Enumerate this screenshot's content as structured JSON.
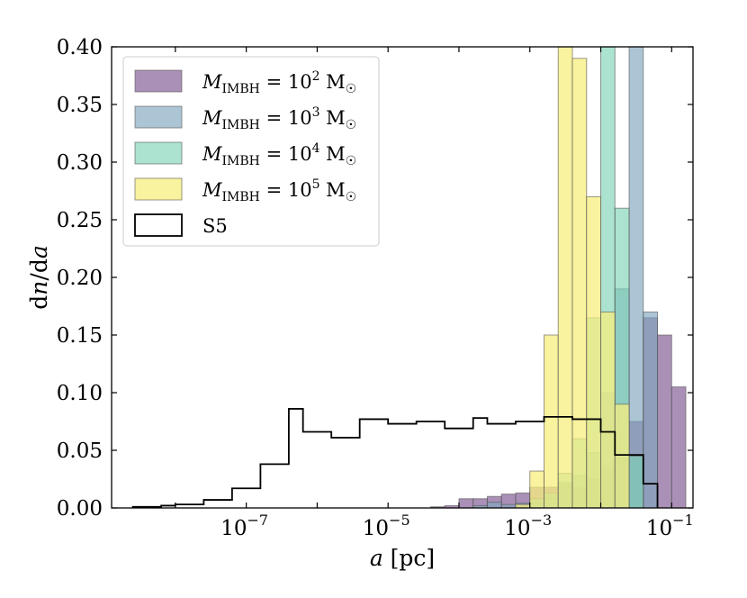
{
  "chart_data": {
    "type": "histogram",
    "xlabel": "a [pc]",
    "ylabel": "dn/da",
    "xscale": "log",
    "xlim": [
      1.26e-09,
      0.2
    ],
    "ylim": [
      0,
      0.4
    ],
    "x_ticks": [
      {
        "value": 1e-07,
        "mantissa": "10",
        "exp": "−7"
      },
      {
        "value": 1e-05,
        "mantissa": "10",
        "exp": "−5"
      },
      {
        "value": 0.001,
        "mantissa": "10",
        "exp": "−3"
      },
      {
        "value": 0.1,
        "mantissa": "10",
        "exp": "−1"
      }
    ],
    "y_ticks": [
      "0.00",
      "0.05",
      "0.10",
      "0.15",
      "0.20",
      "0.25",
      "0.30",
      "0.35",
      "0.40"
    ],
    "bin_width_dex": 0.2,
    "legend": {
      "location": "upper left"
    },
    "series": [
      {
        "name": "M_IMBH = 10^2 M☉",
        "legend_label": {
          "base": "10",
          "exp": "2"
        },
        "style": "filled",
        "color": "#8e6b9d",
        "alpha": 0.75,
        "bins_log10": [
          [
            -4.4,
            -4.2
          ],
          [
            -4.2,
            -4.0
          ],
          [
            -4.0,
            -3.8
          ],
          [
            -3.8,
            -3.6
          ],
          [
            -3.6,
            -3.4
          ],
          [
            -3.4,
            -3.2
          ],
          [
            -3.2,
            -3.0
          ],
          [
            -3.0,
            -2.8
          ],
          [
            -2.8,
            -2.6
          ],
          [
            -2.6,
            -2.4
          ],
          [
            -2.4,
            -2.2
          ],
          [
            -2.2,
            -2.0
          ],
          [
            -2.0,
            -1.8
          ],
          [
            -1.8,
            -1.6
          ],
          [
            -1.6,
            -1.4
          ],
          [
            -1.4,
            -1.2
          ],
          [
            -1.2,
            -1.0
          ],
          [
            -1.0,
            -0.8
          ]
        ],
        "values": [
          0.001,
          0.002,
          0.008,
          0.008,
          0.01,
          0.012,
          0.013,
          0.018,
          0.018,
          0.022,
          0.018,
          0.025,
          0.035,
          0.045,
          0.075,
          0.165,
          0.15,
          0.105
        ]
      },
      {
        "name": "M_IMBH = 10^3 M☉",
        "legend_label": {
          "base": "10",
          "exp": "3"
        },
        "style": "filled",
        "color": "#7fa6bf",
        "alpha": 0.65,
        "bins_log10": [
          [
            -3.8,
            -3.6
          ],
          [
            -3.6,
            -3.4
          ],
          [
            -3.4,
            -3.2
          ],
          [
            -3.2,
            -3.0
          ],
          [
            -3.0,
            -2.8
          ],
          [
            -2.8,
            -2.6
          ],
          [
            -2.6,
            -2.4
          ],
          [
            -2.4,
            -2.2
          ],
          [
            -2.2,
            -2.0
          ],
          [
            -2.0,
            -1.8
          ],
          [
            -1.8,
            -1.6
          ],
          [
            -1.6,
            -1.4
          ],
          [
            -1.4,
            -1.2
          ]
        ],
        "values": [
          0.002,
          0.005,
          0.003,
          0.004,
          0.004,
          0.008,
          0.018,
          0.028,
          0.048,
          0.1,
          0.19,
          0.4,
          0.17
        ]
      },
      {
        "name": "M_IMBH = 10^4 M☉",
        "legend_label": {
          "base": "10",
          "exp": "4"
        },
        "style": "filled",
        "color": "#7ed3b7",
        "alpha": 0.65,
        "bins_log10": [
          [
            -3.0,
            -2.8
          ],
          [
            -2.8,
            -2.6
          ],
          [
            -2.6,
            -2.4
          ],
          [
            -2.4,
            -2.2
          ],
          [
            -2.2,
            -2.0
          ],
          [
            -2.0,
            -1.8
          ],
          [
            -1.8,
            -1.6
          ],
          [
            -1.6,
            -1.4
          ]
        ],
        "values": [
          0.008,
          0.013,
          0.03,
          0.06,
          0.165,
          0.4,
          0.26,
          0.045
        ]
      },
      {
        "name": "M_IMBH = 10^5 M☉",
        "legend_label": {
          "base": "10",
          "exp": "5"
        },
        "style": "filled",
        "color": "#f7ee7d",
        "alpha": 0.75,
        "bins_log10": [
          [
            -3.2,
            -3.0
          ],
          [
            -3.0,
            -2.8
          ],
          [
            -2.8,
            -2.6
          ],
          [
            -2.6,
            -2.4
          ],
          [
            -2.4,
            -2.2
          ],
          [
            -2.2,
            -2.0
          ],
          [
            -2.0,
            -1.8
          ],
          [
            -1.8,
            -1.6
          ]
        ],
        "values": [
          0.003,
          0.032,
          0.15,
          0.4,
          0.39,
          0.27,
          0.17,
          0.09
        ]
      },
      {
        "name": "S5",
        "legend_label": {
          "plain": "S5"
        },
        "style": "step",
        "color": "#000000",
        "bins_log10": [
          [
            -8.6,
            -8.4
          ],
          [
            -8.4,
            -8.2
          ],
          [
            -8.2,
            -8.0
          ],
          [
            -8.0,
            -7.8
          ],
          [
            -7.8,
            -7.6
          ],
          [
            -7.6,
            -7.4
          ],
          [
            -7.4,
            -7.2
          ],
          [
            -7.2,
            -7.0
          ],
          [
            -7.0,
            -6.8
          ],
          [
            -6.8,
            -6.6
          ],
          [
            -6.6,
            -6.4
          ],
          [
            -6.4,
            -6.2
          ],
          [
            -6.2,
            -6.0
          ],
          [
            -6.0,
            -5.8
          ],
          [
            -5.8,
            -5.6
          ],
          [
            -5.6,
            -5.4
          ],
          [
            -5.4,
            -5.2
          ],
          [
            -5.2,
            -5.0
          ],
          [
            -5.0,
            -4.8
          ],
          [
            -4.8,
            -4.6
          ],
          [
            -4.6,
            -4.4
          ],
          [
            -4.4,
            -4.2
          ],
          [
            -4.2,
            -4.0
          ],
          [
            -4.0,
            -3.8
          ],
          [
            -3.8,
            -3.6
          ],
          [
            -3.6,
            -3.4
          ],
          [
            -3.4,
            -3.2
          ],
          [
            -3.2,
            -3.0
          ],
          [
            -3.0,
            -2.8
          ],
          [
            -2.8,
            -2.6
          ],
          [
            -2.6,
            -2.4
          ],
          [
            -2.4,
            -2.2
          ],
          [
            -2.2,
            -2.0
          ],
          [
            -2.0,
            -1.8
          ],
          [
            -1.8,
            -1.6
          ],
          [
            -1.6,
            -1.4
          ],
          [
            -1.4,
            -1.2
          ]
        ],
        "values": [
          0.001,
          0.001,
          0.002,
          0.003,
          0.003,
          0.007,
          0.007,
          0.017,
          0.017,
          0.038,
          0.038,
          0.086,
          0.066,
          0.066,
          0.061,
          0.061,
          0.077,
          0.077,
          0.073,
          0.073,
          0.075,
          0.075,
          0.069,
          0.069,
          0.078,
          0.073,
          0.073,
          0.075,
          0.075,
          0.079,
          0.079,
          0.077,
          0.077,
          0.066,
          0.046,
          0.046,
          0.021
        ]
      }
    ]
  }
}
